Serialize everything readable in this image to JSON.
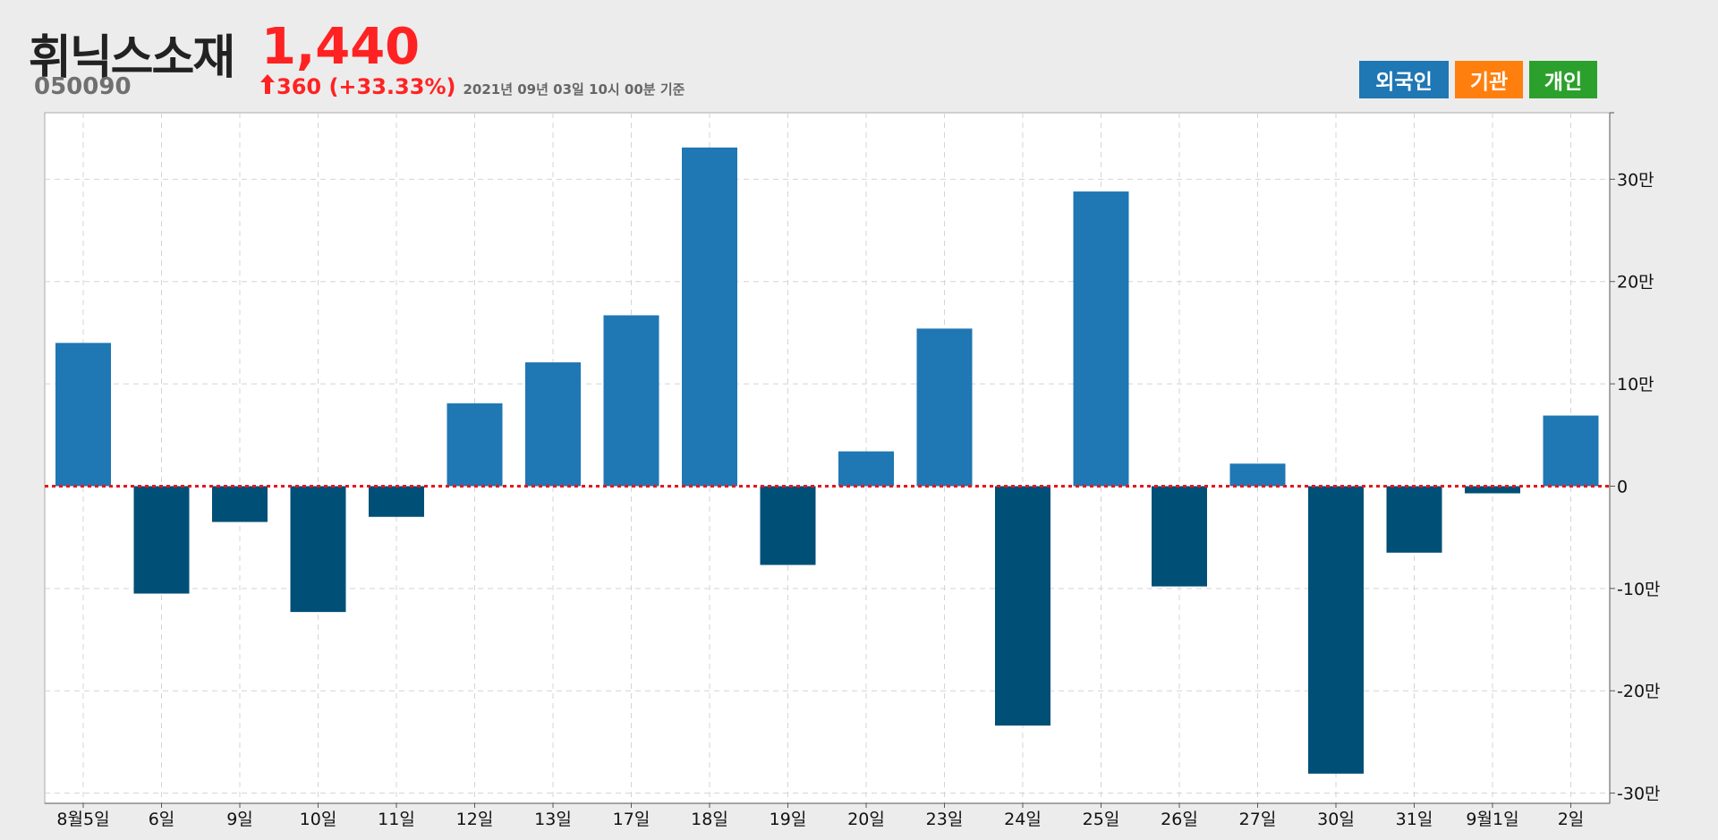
{
  "stock": {
    "name": "휘닉스소재",
    "code": "050090",
    "price": "1,440",
    "change": "360 (+33.33%)",
    "basis": "2021년 09년 03일 10시 00분 기준"
  },
  "legend": {
    "foreign": "외국인",
    "institution": "기관",
    "individual": "개인"
  },
  "colors": {
    "positive": "#1f77b4",
    "negative": "#004f77",
    "zero_line": "#e8141c",
    "up": "#ff2222"
  },
  "chart_data": {
    "type": "bar",
    "categories": [
      "8월5일",
      "6일",
      "9일",
      "10일",
      "11일",
      "12일",
      "13일",
      "17일",
      "18일",
      "19일",
      "20일",
      "23일",
      "24일",
      "25일",
      "26일",
      "27일",
      "30일",
      "31일",
      "9월1일",
      "2일"
    ],
    "values": [
      140000,
      -105000,
      -35000,
      -123000,
      -30000,
      81000,
      121000,
      167000,
      331000,
      -77000,
      34000,
      154000,
      -234000,
      288000,
      -98000,
      22000,
      -281000,
      -65000,
      -7000,
      69000
    ],
    "ylim": [
      -310000,
      365000
    ],
    "yticks": [
      {
        "value": 300000,
        "label": "30만"
      },
      {
        "value": 200000,
        "label": "20만"
      },
      {
        "value": 100000,
        "label": "10만"
      },
      {
        "value": 0,
        "label": "0"
      },
      {
        "value": -100000,
        "label": "-10만"
      },
      {
        "value": -200000,
        "label": "-20만"
      },
      {
        "value": -300000,
        "label": "-30만"
      }
    ],
    "grid": true,
    "zero_line": "dotted"
  }
}
